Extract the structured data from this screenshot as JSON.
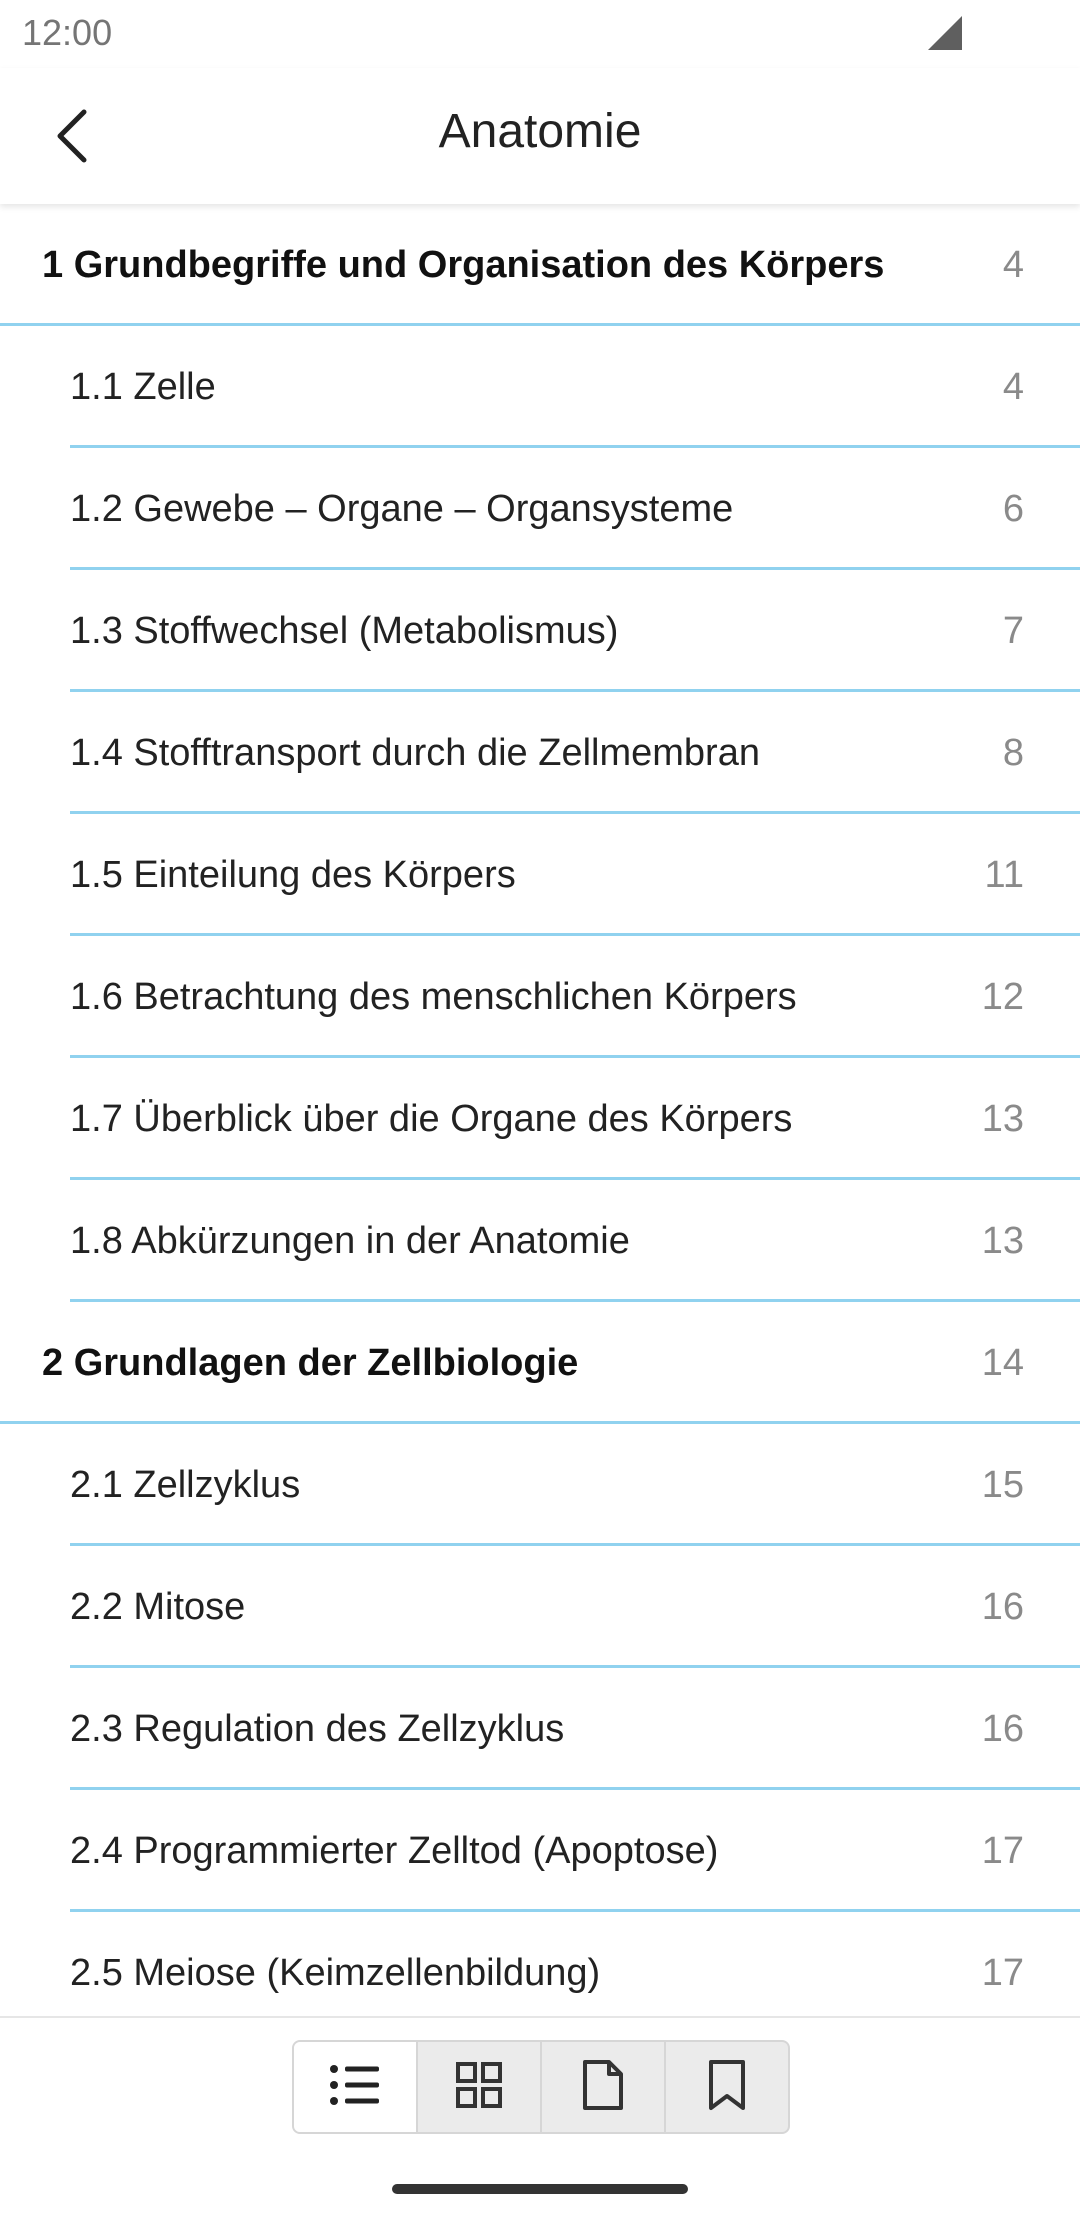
{
  "status_bar": {
    "time": "12:00"
  },
  "app_bar": {
    "title": "Anatomie"
  },
  "toc": [
    {
      "kind": "chapter",
      "label": "1 Grundbegriffe und Organisation des Körpers",
      "page": "4"
    },
    {
      "kind": "section",
      "label": "1.1 Zelle",
      "page": "4"
    },
    {
      "kind": "section",
      "label": "1.2 Gewebe – Organe – Organsysteme",
      "page": "6"
    },
    {
      "kind": "section",
      "label": "1.3 Stoffwechsel (Metabolismus)",
      "page": "7"
    },
    {
      "kind": "section",
      "label": "1.4 Stofftransport durch die Zellmembran",
      "page": "8"
    },
    {
      "kind": "section",
      "label": "1.5 Einteilung des Körpers",
      "page": "11"
    },
    {
      "kind": "section",
      "label": "1.6 Betrachtung des menschlichen Körpers",
      "page": "12"
    },
    {
      "kind": "section",
      "label": "1.7 Überblick über die Organe des Körpers",
      "page": "13"
    },
    {
      "kind": "section",
      "label": "1.8 Abkürzungen in der Anatomie",
      "page": "13"
    },
    {
      "kind": "chapter",
      "label": "2 Grundlagen der Zellbiologie",
      "page": "14"
    },
    {
      "kind": "section",
      "label": "2.1 Zellzyklus",
      "page": "15"
    },
    {
      "kind": "section",
      "label": "2.2 Mitose",
      "page": "16"
    },
    {
      "kind": "section",
      "label": "2.3 Regulation des Zellzyklus",
      "page": "16"
    },
    {
      "kind": "section",
      "label": "2.4 Programmierter Zelltod (Apoptose)",
      "page": "17"
    },
    {
      "kind": "section",
      "label": "2.5 Meiose (Keimzellenbildung)",
      "page": "17"
    }
  ],
  "bottom_nav": {
    "tabs": [
      {
        "icon": "list-icon",
        "active": true
      },
      {
        "icon": "grid-icon",
        "active": false
      },
      {
        "icon": "page-icon",
        "active": false
      },
      {
        "icon": "bookmark-icon",
        "active": false
      }
    ]
  },
  "colors": {
    "divider": "#90d2ef",
    "page_number": "#8a8a8a",
    "status_text": "#757575"
  }
}
